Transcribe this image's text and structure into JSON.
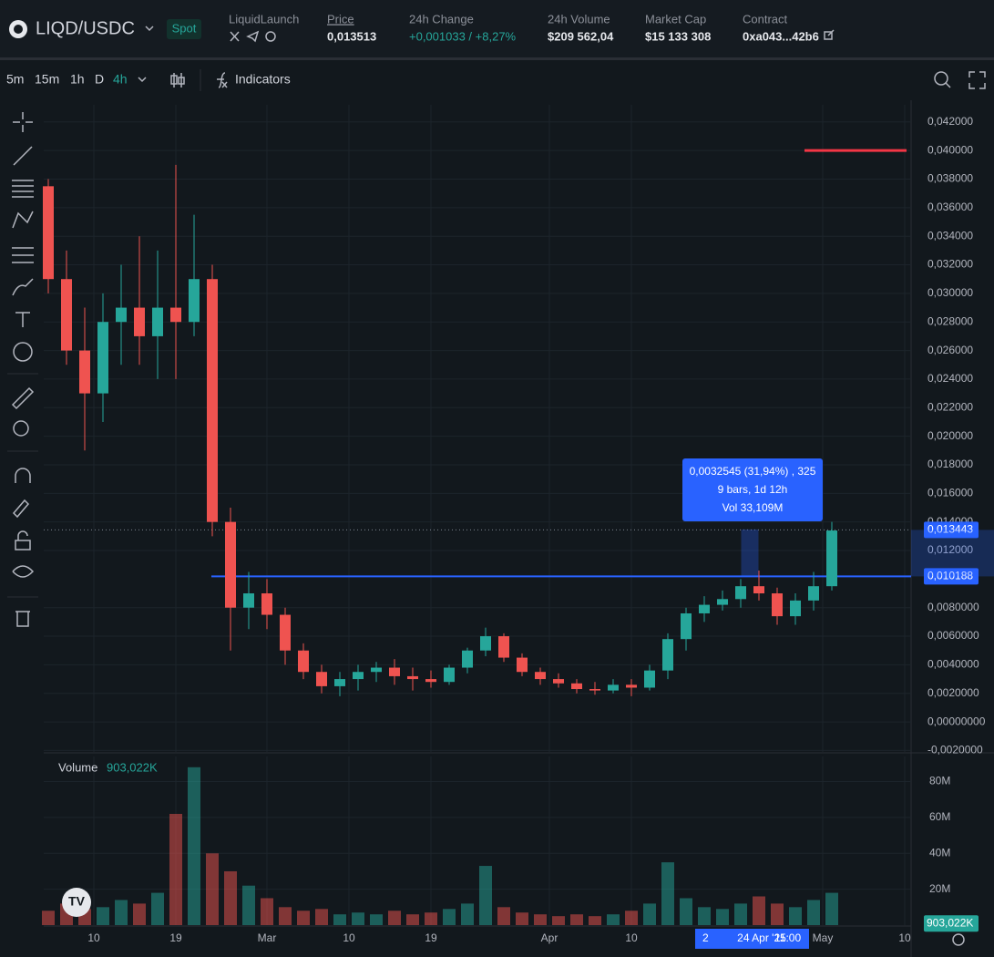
{
  "header": {
    "pair": "LIQD/USDC",
    "market": "Spot",
    "project": "LiquidLaunch",
    "stats": [
      {
        "label": "Price",
        "value": "0,013513"
      },
      {
        "label": "24h Change",
        "value": "+0,001033 / +8,27%"
      },
      {
        "label": "24h Volume",
        "value": "$209 562,04"
      },
      {
        "label": "Market Cap",
        "value": "$15 133 308"
      },
      {
        "label": "Contract",
        "value": "0xa043...42b6"
      }
    ]
  },
  "toolbar": {
    "intervals": [
      "5m",
      "15m",
      "1h",
      "D",
      "4h"
    ],
    "indicators": "Indicators"
  },
  "chart_data": {
    "type": "candlestick",
    "up_color": "#26a69a",
    "down_color": "#ef5350",
    "grid": true,
    "x": [
      -5,
      -3,
      -1,
      1,
      3,
      5,
      7,
      9,
      11,
      13,
      15,
      17,
      19,
      21,
      23,
      25,
      27,
      29,
      31,
      33,
      35,
      37,
      39,
      41,
      43,
      45,
      47,
      49,
      51,
      53,
      55,
      57,
      59,
      61,
      63,
      65,
      67,
      69,
      71,
      73,
      75,
      77,
      79,
      81
    ],
    "open": [
      0.0375,
      0.031,
      0.026,
      0.023,
      0.028,
      0.029,
      0.027,
      0.029,
      0.028,
      0.031,
      0.014,
      0.008,
      0.009,
      0.0075,
      0.005,
      0.0035,
      0.0025,
      0.003,
      0.0035,
      0.0038,
      0.0032,
      0.003,
      0.0028,
      0.0038,
      0.005,
      0.006,
      0.0045,
      0.0035,
      0.003,
      0.0027,
      0.0023,
      0.0022,
      0.0026,
      0.0024,
      0.0036,
      0.0058,
      0.0076,
      0.0082,
      0.0086,
      0.0095,
      0.009,
      0.0074,
      0.0085,
      0.0095
    ],
    "high": [
      0.038,
      0.033,
      0.029,
      0.03,
      0.032,
      0.034,
      0.033,
      0.039,
      0.0355,
      0.032,
      0.015,
      0.0105,
      0.01,
      0.008,
      0.0055,
      0.004,
      0.0035,
      0.004,
      0.0042,
      0.0044,
      0.0038,
      0.0036,
      0.004,
      0.0052,
      0.0066,
      0.0062,
      0.0048,
      0.0038,
      0.0034,
      0.003,
      0.0028,
      0.003,
      0.003,
      0.004,
      0.0062,
      0.008,
      0.0088,
      0.0092,
      0.01,
      0.0106,
      0.0094,
      0.009,
      0.0105,
      0.014
    ],
    "low": [
      0.03,
      0.025,
      0.019,
      0.021,
      0.025,
      0.025,
      0.024,
      0.024,
      0.027,
      0.013,
      0.005,
      0.0065,
      0.0065,
      0.004,
      0.003,
      0.002,
      0.0018,
      0.0022,
      0.0028,
      0.0026,
      0.0022,
      0.0024,
      0.0026,
      0.0034,
      0.0046,
      0.0042,
      0.0032,
      0.0026,
      0.0024,
      0.002,
      0.0019,
      0.002,
      0.0018,
      0.0022,
      0.003,
      0.005,
      0.007,
      0.0078,
      0.008,
      0.0085,
      0.0068,
      0.0068,
      0.0078,
      0.0092
    ],
    "close": [
      0.031,
      0.026,
      0.023,
      0.028,
      0.029,
      0.027,
      0.029,
      0.028,
      0.031,
      0.014,
      0.008,
      0.009,
      0.0075,
      0.005,
      0.0035,
      0.0025,
      0.003,
      0.0035,
      0.0038,
      0.0032,
      0.003,
      0.0028,
      0.0038,
      0.005,
      0.006,
      0.0045,
      0.0035,
      0.003,
      0.0027,
      0.0023,
      0.0022,
      0.0026,
      0.0024,
      0.0036,
      0.0058,
      0.0076,
      0.0082,
      0.0086,
      0.0095,
      0.009,
      0.0074,
      0.0085,
      0.0095,
      0.0134
    ],
    "xlim": [
      -5.5,
      89.7
    ],
    "xticks": [
      {
        "value": 0,
        "label": "10"
      },
      {
        "value": 9,
        "label": "19"
      },
      {
        "value": 19,
        "label": "Mar"
      },
      {
        "value": 28,
        "label": "10"
      },
      {
        "value": 37,
        "label": "19"
      },
      {
        "value": 50,
        "label": "Apr"
      },
      {
        "value": 59,
        "label": "10"
      },
      {
        "value": 80,
        "label": "May"
      },
      {
        "value": 89,
        "label": "10"
      }
    ],
    "ylim": [
      -0.0021,
      0.0432
    ],
    "yticks": [
      {
        "value": 0.042,
        "label": "0,042000"
      },
      {
        "value": 0.04,
        "label": "0,040000"
      },
      {
        "value": 0.038,
        "label": "0,038000"
      },
      {
        "value": 0.036,
        "label": "0,036000"
      },
      {
        "value": 0.034,
        "label": "0,034000"
      },
      {
        "value": 0.032,
        "label": "0,032000"
      },
      {
        "value": 0.03,
        "label": "0,030000"
      },
      {
        "value": 0.028,
        "label": "0,028000"
      },
      {
        "value": 0.026,
        "label": "0,026000"
      },
      {
        "value": 0.024,
        "label": "0,024000"
      },
      {
        "value": 0.022,
        "label": "0,022000"
      },
      {
        "value": 0.02,
        "label": "0,020000"
      },
      {
        "value": 0.018,
        "label": "0,018000"
      },
      {
        "value": 0.016,
        "label": "0,016000"
      },
      {
        "value": 0.014,
        "label": "0,014000"
      },
      {
        "value": 0.012,
        "label": "0,012000"
      },
      {
        "value": 0.008,
        "label": "0,0080000"
      },
      {
        "value": 0.006,
        "label": "0,0060000"
      },
      {
        "value": 0.004,
        "label": "0,0040000"
      },
      {
        "value": 0.002,
        "label": "0,0020000"
      },
      {
        "value": 0,
        "label": "0,00000000"
      },
      {
        "value": -0.002,
        "label": "-0,0020000"
      }
    ],
    "price_lines": [
      {
        "value": 0.013443,
        "label": "0,013443",
        "color": "#2962ff"
      },
      {
        "value": 0.010188,
        "label": "0,010188",
        "color": "#2962ff"
      }
    ],
    "drawn_level": {
      "value": 0.04,
      "color": "#f23645"
    },
    "measure": {
      "x": [
        71.5,
        72.5
      ],
      "lines": [
        "0,0032545 (31,94%) , 325",
        "9 bars, 1d 12h",
        "Vol 33,109M"
      ]
    },
    "crosshair": {
      "x": 73.3,
      "prefix": "2",
      "date": "24 Apr '25",
      "time": "11:00"
    },
    "volume": {
      "title": "Volume",
      "last": {
        "value": 0.903022,
        "label": "903,022K"
      },
      "values": [
        8,
        12,
        9,
        10,
        14,
        12,
        18,
        62,
        88,
        40,
        30,
        22,
        15,
        10,
        8,
        9,
        6,
        7,
        6,
        8,
        6,
        7,
        9,
        12,
        33,
        10,
        7,
        6,
        5,
        6,
        5,
        6,
        8,
        12,
        35,
        15,
        10,
        9,
        12,
        16,
        12,
        10,
        14,
        18
      ],
      "ylim": [
        0,
        94
      ],
      "yticks": [
        {
          "value": 20,
          "label": "20M"
        },
        {
          "value": 40,
          "label": "40M"
        },
        {
          "value": 60,
          "label": "60M"
        },
        {
          "value": 80,
          "label": "80M"
        }
      ]
    }
  }
}
